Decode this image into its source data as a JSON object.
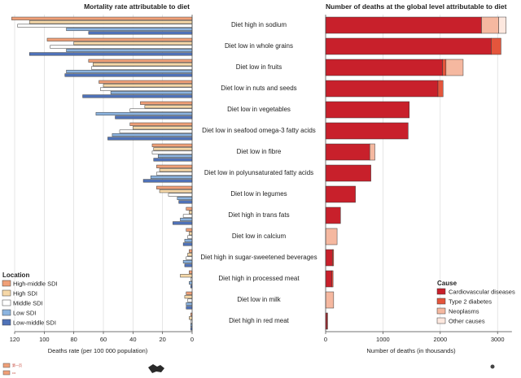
{
  "titles": {
    "left": "Mortality rate attributable to diet",
    "right": "Number of deaths at the global level attributable to diet"
  },
  "axes": {
    "left_xlabel": "Deaths rate (per 100 000 population)",
    "right_xlabel": "Number of deaths (in thousands)",
    "left_ticks": [
      "120",
      "100",
      "80",
      "60",
      "40",
      "20",
      "0"
    ],
    "right_ticks": [
      "0",
      "1000",
      "2000",
      "3000"
    ]
  },
  "legend_location": {
    "title": "Location",
    "items": [
      "High-middle SDI",
      "High SDI",
      "Middle SDI",
      "Low SDI",
      "Low-middle SDI"
    ]
  },
  "legend_cause": {
    "title": "Cause",
    "items": [
      "Cardiovascular diseases",
      "Type 2 diabetes",
      "Neoplasms",
      "Other causes"
    ]
  },
  "footer": {
    "mark1": "第一页",
    "mark2": "•••"
  },
  "colors": {
    "high_middle": "#f0a078",
    "high": "#f6d8a8",
    "middle": "#ffffff",
    "low": "#8cb4e0",
    "low_middle": "#4f72b8",
    "cardio": "#c8202b",
    "diabetes": "#e4553c",
    "neoplasms": "#f5b8a0",
    "other": "#fde8df"
  },
  "chart_data": [
    {
      "type": "bar",
      "orientation": "horizontal",
      "title": "Mortality rate attributable to diet",
      "xlabel": "Deaths rate (per 100 000 population)",
      "xlim": [
        0,
        120
      ],
      "x_reversed": true,
      "categories": [
        "Diet high in sodium",
        "Diet low in whole grains",
        "Diet low in fruits",
        "Diet low in nuts and seeds",
        "Diet low in vegetables",
        "Diet low in seafood omega-3 fatty acids",
        "Diet low in fibre",
        "Diet low in polyunsaturated fatty acids",
        "Diet low in legumes",
        "Diet high in trans fats",
        "Diet low in calcium",
        "Diet high in sugar-sweetened beverages",
        "Diet high in processed meat",
        "Diet low in milk",
        "Diet high in red meat"
      ],
      "series": [
        {
          "name": "High-middle SDI",
          "values": [
            122,
            98,
            70,
            63,
            35,
            42,
            27,
            24,
            24,
            4,
            4,
            2,
            2,
            4,
            1
          ]
        },
        {
          "name": "High SDI",
          "values": [
            110,
            80,
            67,
            60,
            32,
            40,
            26,
            22,
            22,
            2,
            2,
            3,
            8,
            5,
            2
          ]
        },
        {
          "name": "Middle SDI",
          "values": [
            118,
            96,
            68,
            62,
            42,
            49,
            27,
            24,
            16,
            6,
            3,
            4,
            1,
            3,
            1
          ]
        },
        {
          "name": "Low SDI",
          "values": [
            85,
            85,
            85,
            55,
            65,
            54,
            23,
            28,
            10,
            8,
            5,
            6,
            2,
            4,
            1
          ]
        },
        {
          "name": "Low-middle SDI",
          "values": [
            70,
            110,
            86,
            74,
            52,
            57,
            26,
            33,
            9,
            13,
            6,
            5,
            1,
            4,
            1
          ]
        }
      ]
    },
    {
      "type": "bar",
      "orientation": "horizontal",
      "stacked": true,
      "title": "Number of deaths at the global level attributable to diet",
      "xlabel": "Number of deaths (in thousands)",
      "xlim": [
        0,
        3250
      ],
      "categories": [
        "Diet high in sodium",
        "Diet low in whole grains",
        "Diet low in fruits",
        "Diet low in nuts and seeds",
        "Diet low in vegetables",
        "Diet low in seafood omega-3 fatty acids",
        "Diet low in fibre",
        "Diet low in polyunsaturated fatty acids",
        "Diet low in legumes",
        "Diet high in trans fats",
        "Diet low in calcium",
        "Diet high in sugar-sweetened beverages",
        "Diet high in processed meat",
        "Diet low in milk",
        "Diet high in red meat"
      ],
      "series": [
        {
          "name": "Cardiovascular diseases",
          "values": [
            2720,
            2890,
            2040,
            1960,
            1460,
            1440,
            770,
            790,
            520,
            260,
            0,
            120,
            110,
            0,
            25
          ]
        },
        {
          "name": "Type 2 diabetes",
          "values": [
            0,
            170,
            60,
            90,
            0,
            0,
            0,
            0,
            0,
            0,
            0,
            20,
            20,
            0,
            10
          ]
        },
        {
          "name": "Neoplasms",
          "values": [
            300,
            0,
            300,
            0,
            0,
            0,
            90,
            0,
            0,
            0,
            200,
            0,
            0,
            140,
            0
          ]
        },
        {
          "name": "Other causes",
          "values": [
            130,
            0,
            0,
            0,
            0,
            0,
            0,
            0,
            0,
            0,
            0,
            0,
            0,
            0,
            0
          ]
        }
      ]
    }
  ]
}
